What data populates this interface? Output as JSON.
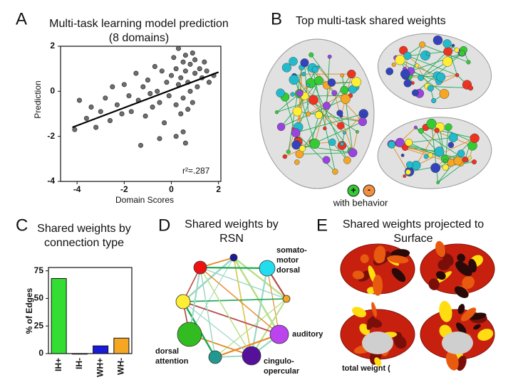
{
  "chart_data": [
    {
      "type": "scatter",
      "title": "Multi-task learning model prediction",
      "subtitle": "(8 domains)",
      "x_label": "Domain Scores",
      "y_label": "Prediction",
      "annotation": "r²=.287",
      "color": "#6e6e6e",
      "x": [
        -4.1,
        -3.9,
        -3.6,
        -3.4,
        -3.2,
        -3.0,
        -2.8,
        -2.6,
        -2.5,
        -2.3,
        -2.1,
        -2.0,
        -1.8,
        -1.7,
        -1.5,
        -1.4,
        -1.2,
        -1.1,
        -1.0,
        -0.9,
        -0.8,
        -0.7,
        -0.6,
        -0.5,
        -0.4,
        -0.3,
        -0.2,
        -0.1,
        0.0,
        0.1,
        0.2,
        0.2,
        0.3,
        0.3,
        0.4,
        0.4,
        0.5,
        0.5,
        0.6,
        0.6,
        0.7,
        0.7,
        0.8,
        0.8,
        0.9,
        0.9,
        1.0,
        1.0,
        1.1,
        1.2,
        1.3,
        1.4,
        1.5,
        1.6,
        1.8,
        0.5,
        0.6,
        0.2,
        -0.5,
        -1.3
      ],
      "values": [
        -1.7,
        -0.4,
        -1.2,
        -0.7,
        -1.6,
        -0.9,
        -0.3,
        -1.3,
        0.2,
        -0.6,
        -1.0,
        0.3,
        -0.2,
        -0.9,
        0.8,
        -0.4,
        0.2,
        -1.1,
        0.5,
        -0.1,
        -0.7,
        1.1,
        0.0,
        -0.5,
        0.9,
        -1.4,
        0.4,
        -0.2,
        0.7,
        1.5,
        -0.6,
        1.0,
        0.3,
        1.9,
        -1.0,
        0.6,
        1.3,
        -0.3,
        0.9,
        1.6,
        -0.8,
        0.4,
        1.2,
        0.0,
        1.7,
        -0.5,
        0.8,
        1.4,
        0.2,
        1.0,
        0.6,
        1.3,
        0.9,
        0.4,
        0.7,
        -1.8,
        -2.3,
        -2.0,
        -2.1,
        -2.4
      ],
      "fit_line": {
        "x": [
          -4.2,
          2
        ],
        "y": [
          -1.6,
          0.85
        ]
      },
      "xlim": [
        -4.7,
        2.1
      ],
      "xticks": [
        -4,
        -2,
        0,
        2
      ],
      "ylim": [
        -4,
        2
      ],
      "yticks": [
        -4,
        -2,
        0,
        2
      ]
    },
    {
      "type": "bar",
      "title": [
        "Shared weights by",
        "connection type"
      ],
      "y_label": "% of Edges",
      "categories": [
        "IH+",
        "IH-",
        "WH+",
        "WH-"
      ],
      "values": [
        68,
        0,
        7,
        14
      ],
      "colors": [
        "#33dd33",
        "#888888",
        "#1a1adb",
        "#f5a623"
      ],
      "ylim": [
        0,
        78
      ],
      "yticks": [
        0,
        25,
        50,
        75
      ]
    }
  ],
  "panel_labels": [
    "A",
    "B",
    "C",
    "D",
    "E"
  ],
  "panel_b": {
    "title": "Top multi-task shared weights",
    "legend_plus": "+",
    "legend_minus": "-",
    "legend_text": "with behavior"
  },
  "panel_d": {
    "title": [
      "Shared weights by",
      "RSN"
    ],
    "labels": [
      [
        "somato-",
        "motor",
        "dorsal"
      ],
      [
        "auditory"
      ],
      [
        "cingulo-",
        "opercular"
      ],
      [
        "dorsal",
        "attention"
      ]
    ]
  },
  "panel_e": {
    "title": [
      "Shared weights projected to",
      "Surface"
    ],
    "footer": "total weight ("
  }
}
